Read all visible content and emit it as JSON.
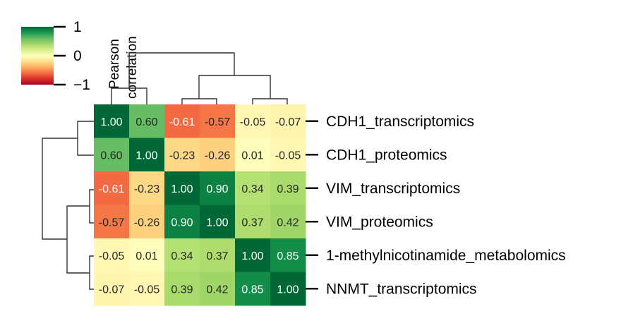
{
  "chart_data": {
    "type": "heatmap",
    "title": "",
    "row_labels": [
      "CDH1_transcriptomics",
      "CDH1_proteomics",
      "VIM_transcriptomics",
      "VIM_proteomics",
      "1-methylnicotinamide_metabolomics",
      "NNMT_transcriptomics"
    ],
    "values": [
      [
        1.0,
        0.6,
        -0.61,
        -0.57,
        -0.05,
        -0.07
      ],
      [
        0.6,
        1.0,
        -0.23,
        -0.26,
        0.01,
        -0.05
      ],
      [
        -0.61,
        -0.23,
        1.0,
        0.9,
        0.34,
        0.39
      ],
      [
        -0.57,
        -0.26,
        0.9,
        1.0,
        0.37,
        0.42
      ],
      [
        -0.05,
        0.01,
        0.34,
        0.37,
        1.0,
        0.85
      ],
      [
        -0.07,
        -0.05,
        0.39,
        0.42,
        0.85,
        1.0
      ]
    ],
    "cell_text": [
      [
        "1.00",
        "0.60",
        "-0.61",
        "-0.57",
        "-0.05",
        "-0.07"
      ],
      [
        "0.60",
        "1.00",
        "-0.23",
        "-0.26",
        "0.01",
        "-0.05"
      ],
      [
        "-0.61",
        "-0.23",
        "1.00",
        "0.90",
        "0.34",
        "0.39"
      ],
      [
        "-0.57",
        "-0.26",
        "0.90",
        "1.00",
        "0.37",
        "0.42"
      ],
      [
        "-0.05",
        "0.01",
        "0.34",
        "0.37",
        "1.00",
        "0.85"
      ],
      [
        "-0.07",
        "-0.05",
        "0.39",
        "0.42",
        "0.85",
        "1.00"
      ]
    ],
    "value_range": [
      -1,
      1
    ],
    "colormap": "RdYlGn",
    "colorbar": {
      "title_lines": [
        "Pearson",
        "correlation"
      ],
      "ticks": [
        1,
        0,
        -1
      ],
      "tick_labels": [
        "1",
        "0",
        "−1"
      ]
    },
    "dendrograms": {
      "rows": "left",
      "columns": "top",
      "groups": [
        [
          "CDH1_transcriptomics",
          "CDH1_proteomics"
        ],
        [
          "VIM_transcriptomics",
          "VIM_proteomics"
        ],
        [
          "1-methylnicotinamide_metabolomics",
          "NNMT_transcriptomics"
        ]
      ]
    }
  }
}
